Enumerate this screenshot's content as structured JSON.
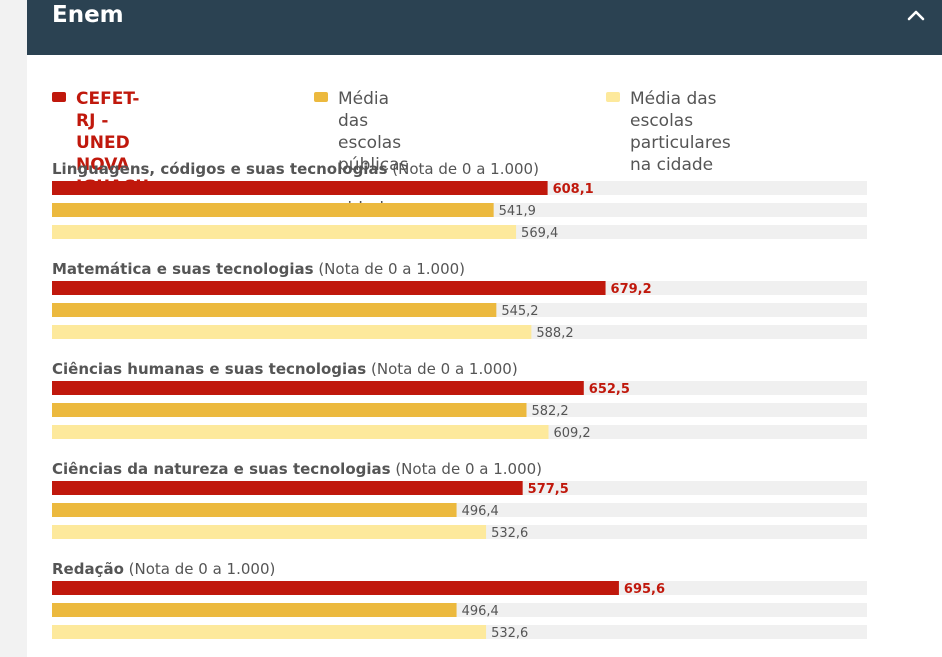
{
  "header": {
    "title": "Enem"
  },
  "colors": {
    "school": "#c0180c",
    "public": "#ecb93e",
    "private": "#fde99c",
    "track": "#f0f0f0",
    "header_bg": "#2b4252"
  },
  "legend": [
    {
      "lines": [
        "CEFET-RJ - UNED NOVA",
        "IGUACU"
      ],
      "color": "#c0180c"
    },
    {
      "lines": [
        "Média das escolas públicas",
        "na cidade"
      ],
      "color": "#ecb93e"
    },
    {
      "lines": [
        "Média das escolas particulares",
        "na cidade"
      ],
      "color": "#fde99c"
    }
  ],
  "chart_data": {
    "type": "bar",
    "orientation": "horizontal",
    "scale_max": 1000,
    "unit_note": "(Nota de 0 a 1.000)",
    "series_names": [
      "CEFET-RJ - UNED NOVA IGUACU",
      "Média das escolas públicas na cidade",
      "Média das escolas particulares na cidade"
    ],
    "groups": [
      {
        "title": "Linguagens, códigos e suas tecnologias",
        "note": "(Nota de 0 a 1.000)",
        "values": [
          608.1,
          541.9,
          569.4
        ],
        "labels": [
          "608,1",
          "541,9",
          "569,4"
        ]
      },
      {
        "title": "Matemática e suas tecnologias",
        "note": "(Nota de 0 a 1.000)",
        "values": [
          679.2,
          545.2,
          588.2
        ],
        "labels": [
          "679,2",
          "545,2",
          "588,2"
        ]
      },
      {
        "title": "Ciências humanas e suas tecnologias",
        "note": "(Nota de 0 a 1.000)",
        "values": [
          652.5,
          582.2,
          609.2
        ],
        "labels": [
          "652,5",
          "582,2",
          "609,2"
        ]
      },
      {
        "title": "Ciências da natureza e suas tecnologias",
        "note": "(Nota de 0 a 1.000)",
        "values": [
          577.5,
          496.4,
          532.6
        ],
        "labels": [
          "577,5",
          "496,4",
          "532,6"
        ]
      },
      {
        "title": "Redação",
        "note": "(Nota de 0 a 1.000)",
        "values": [
          695.6,
          496.4,
          532.6
        ],
        "labels": [
          "695,6",
          "496,4",
          "532,6"
        ]
      }
    ]
  }
}
